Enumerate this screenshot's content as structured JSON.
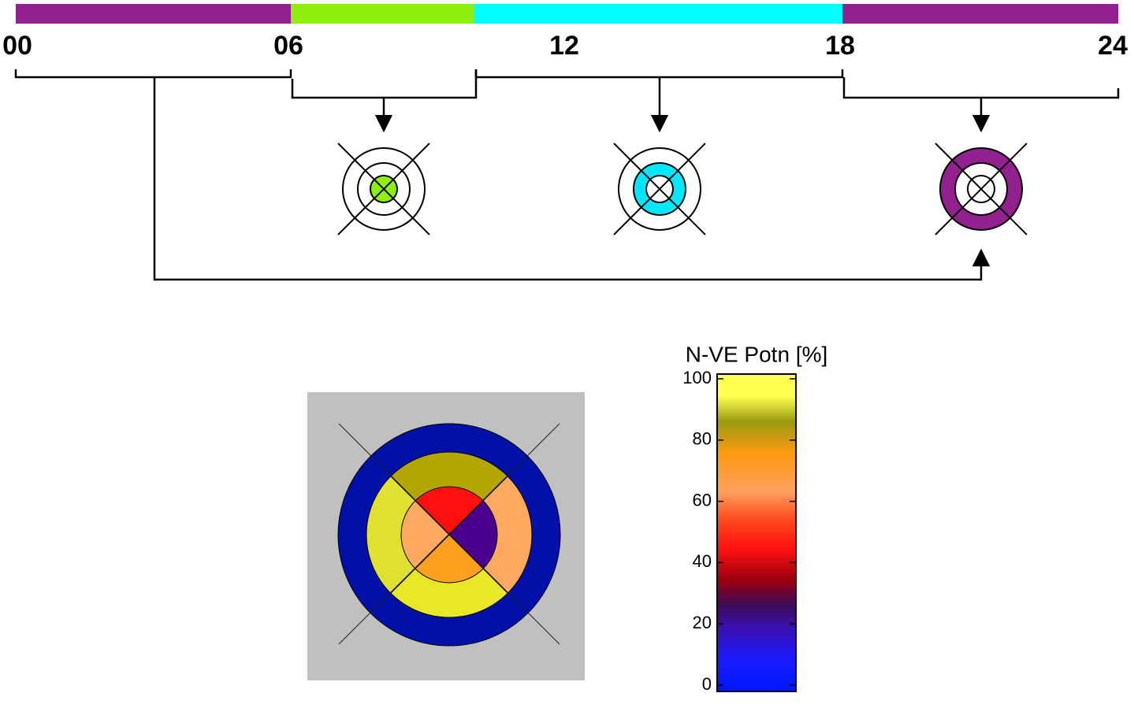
{
  "timeline": {
    "labels": [
      "00",
      "06",
      "12",
      "18",
      "24"
    ]
  },
  "colorbar": {
    "title": "N-VE Potn [%]",
    "ticks": [
      0,
      20,
      40,
      60,
      80,
      100
    ]
  }
}
